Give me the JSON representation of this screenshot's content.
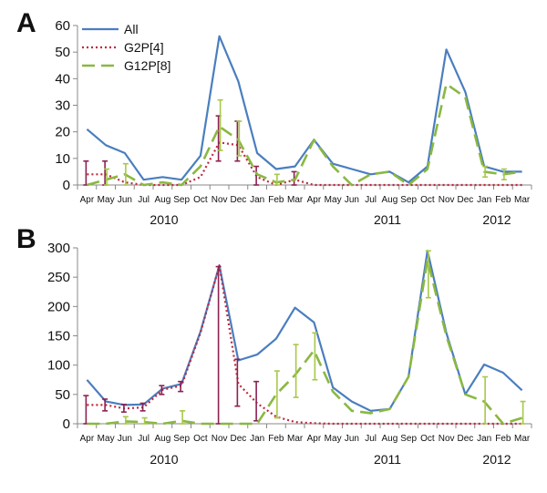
{
  "colors": {
    "All": "#4a7ebf",
    "G2P[4]": "#c0283c",
    "G12P[8]": "#8ab842",
    "G2P[4]_errorbar": "#8b2252",
    "G12P[8]_errorbar": "#a8c84a"
  },
  "chart_data": [
    {
      "type": "line",
      "panel_label": "A",
      "categories": [
        "Apr",
        "May",
        "Jun",
        "Jul",
        "Aug",
        "Sep",
        "Oct",
        "Nov",
        "Dec",
        "Jan",
        "Feb",
        "Mar",
        "Apr",
        "May",
        "Jun",
        "Jul",
        "Aug",
        "Sep",
        "Oct",
        "Nov",
        "Dec",
        "Jan",
        "Feb",
        "Mar"
      ],
      "year_labels": [
        "2010",
        "2011",
        "2012"
      ],
      "ylim": [
        0,
        60
      ],
      "yticks": [
        0,
        10,
        20,
        30,
        40,
        50,
        60
      ],
      "legend": {
        "position": "top-left",
        "entries": [
          "All",
          "G2P[4]",
          "G12P[8]"
        ]
      },
      "series": [
        {
          "name": "All",
          "style": "solid",
          "values": [
            21,
            15,
            12,
            2,
            3,
            2,
            11,
            56,
            39,
            12,
            6,
            7,
            17,
            8,
            6,
            4,
            5,
            1,
            7,
            51,
            35,
            7,
            5,
            5
          ]
        },
        {
          "name": "G2P[4]",
          "style": "dotted",
          "values": [
            4,
            4,
            1,
            0,
            0,
            0,
            3,
            16,
            15,
            3,
            0,
            2,
            0,
            0,
            0,
            0,
            0,
            0,
            0,
            0,
            0,
            0,
            0,
            0
          ],
          "error_low": [
            0,
            0,
            0,
            0,
            0,
            0,
            0,
            9,
            9,
            0,
            0,
            0,
            0,
            0,
            0,
            0,
            0,
            0,
            0,
            0,
            0,
            0,
            0,
            0
          ],
          "error_high": [
            9,
            9,
            0,
            0,
            0,
            0,
            0,
            26,
            24,
            7,
            0,
            5,
            0,
            0,
            0,
            0,
            0,
            0,
            0,
            0,
            0,
            0,
            0,
            0
          ]
        },
        {
          "name": "G12P[8]",
          "style": "dashed",
          "values": [
            0,
            2,
            4,
            0,
            1,
            0,
            7,
            22,
            17,
            4,
            1,
            2,
            17,
            7,
            0,
            4,
            5,
            0,
            6,
            38,
            33,
            5,
            4,
            5
          ],
          "error_low": [
            0,
            0,
            0,
            0,
            0,
            0,
            0,
            13,
            11,
            0,
            0,
            0,
            0,
            0,
            0,
            0,
            0,
            0,
            0,
            0,
            0,
            3,
            2,
            0
          ],
          "error_high": [
            0,
            6,
            8,
            0,
            0,
            0,
            0,
            32,
            24,
            0,
            4,
            0,
            0,
            0,
            0,
            0,
            0,
            0,
            0,
            0,
            0,
            7,
            6,
            0
          ]
        }
      ]
    },
    {
      "type": "line",
      "panel_label": "B",
      "categories": [
        "Apr",
        "May",
        "Jun",
        "Jul",
        "Aug",
        "Sep",
        "Oct",
        "Nov",
        "Dec",
        "Jan",
        "Feb",
        "Mar",
        "Apr",
        "May",
        "Jun",
        "Jul",
        "Aug",
        "Sep",
        "Oct",
        "Nov",
        "Dec",
        "Jan",
        "Feb",
        "Mar"
      ],
      "year_labels": [
        "2010",
        "2011",
        "2012"
      ],
      "ylim": [
        0,
        300
      ],
      "yticks": [
        0,
        50,
        100,
        150,
        200,
        250,
        300
      ],
      "series": [
        {
          "name": "All",
          "style": "solid",
          "values": [
            75,
            38,
            32,
            33,
            60,
            68,
            157,
            270,
            108,
            118,
            145,
            198,
            173,
            62,
            38,
            22,
            25,
            80,
            295,
            155,
            50,
            101,
            87,
            57
          ]
        },
        {
          "name": "G2P[4]",
          "style": "dotted",
          "values": [
            32,
            32,
            26,
            28,
            58,
            65,
            155,
            270,
            68,
            35,
            12,
            3,
            1,
            0,
            0,
            0,
            0,
            0,
            0,
            0,
            0,
            0,
            0,
            0
          ],
          "error_low": [
            0,
            22,
            20,
            22,
            50,
            55,
            0,
            0,
            30,
            5,
            0,
            0,
            0,
            0,
            0,
            0,
            0,
            0,
            0,
            0,
            0,
            0,
            0,
            0
          ],
          "error_high": [
            48,
            42,
            33,
            35,
            65,
            72,
            0,
            268,
            110,
            72,
            0,
            0,
            0,
            0,
            0,
            0,
            0,
            0,
            0,
            0,
            0,
            0,
            0,
            0
          ]
        },
        {
          "name": "G12P[8]",
          "style": "dashed",
          "values": [
            0,
            0,
            4,
            3,
            0,
            5,
            0,
            0,
            0,
            0,
            50,
            83,
            125,
            55,
            22,
            18,
            25,
            80,
            280,
            150,
            50,
            38,
            0,
            10
          ],
          "error_low": [
            0,
            0,
            0,
            0,
            0,
            0,
            0,
            0,
            0,
            0,
            10,
            45,
            75,
            0,
            0,
            0,
            0,
            0,
            215,
            0,
            0,
            0,
            0,
            0
          ],
          "error_high": [
            0,
            0,
            12,
            10,
            0,
            22,
            0,
            0,
            0,
            0,
            90,
            135,
            155,
            0,
            0,
            0,
            0,
            0,
            295,
            0,
            0,
            80,
            0,
            38
          ]
        }
      ]
    }
  ]
}
